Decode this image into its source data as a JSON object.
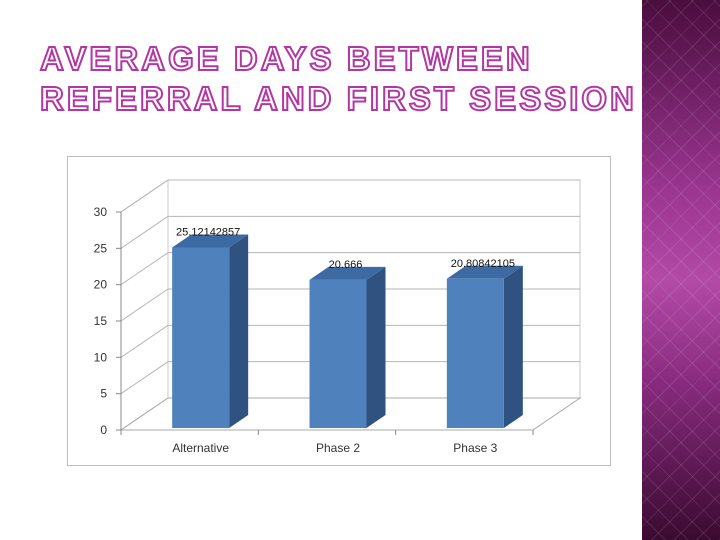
{
  "slide": {
    "title_line1": "AVERAGE DAYS BETWEEN",
    "title_line2": "REFERRAL AND FIRST SESSION"
  },
  "colors": {
    "title_outline": "#b236a3",
    "bar_front": "#4f81bd",
    "bar_side": "#2f5281",
    "bar_top": "#3d6aa3",
    "panel_accent": "#8e2e86"
  },
  "chart_data": {
    "type": "bar",
    "categories": [
      "Alternative",
      "Phase 2",
      "Phase 3"
    ],
    "values": [
      25.12142857,
      20.666,
      20.80842105
    ],
    "value_labels": [
      "25.12142857",
      "20.666",
      "20.80842105"
    ],
    "ylim": [
      0,
      30
    ],
    "yticks": [
      0,
      5,
      10,
      15,
      20,
      25,
      30
    ],
    "grid": true,
    "legend": "none",
    "style": "3d"
  }
}
